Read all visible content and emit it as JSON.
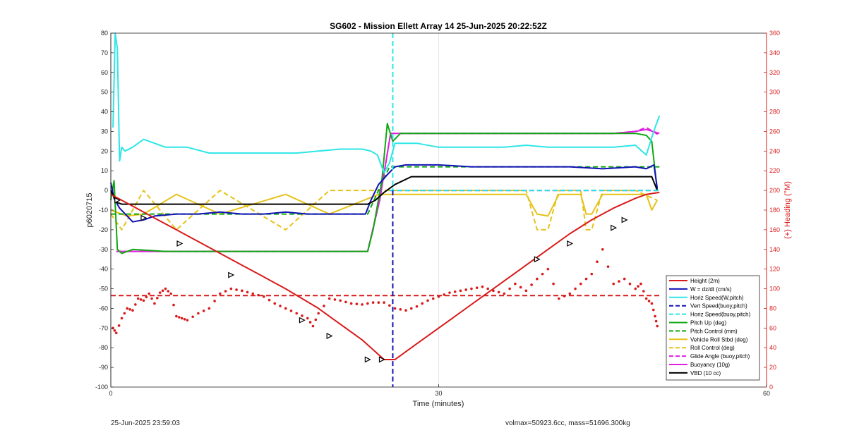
{
  "chart_data": {
    "type": "line",
    "title": "SG602 - Mission Ellett Array 14 25-Jun-2025 20:22:52Z",
    "xlabel": "Time (minutes)",
    "ylabel_left": "p6020715",
    "ylabel_right": "(+) Heading (°M)",
    "xlim": [
      0,
      60
    ],
    "ylim_left": [
      -100,
      80
    ],
    "ylim_right": [
      0,
      360
    ],
    "x_ticks": [
      0,
      30,
      60
    ],
    "y_ticks_left": [
      -100,
      -90,
      -80,
      -70,
      -60,
      -50,
      -40,
      -30,
      -20,
      -10,
      0,
      10,
      20,
      30,
      40,
      50,
      60,
      70,
      80
    ],
    "y_ticks_right": [
      0,
      20,
      40,
      60,
      80,
      100,
      120,
      140,
      160,
      180,
      200,
      220,
      240,
      260,
      280,
      300,
      320,
      340,
      360
    ],
    "grid": "vertical at x ticks",
    "legend_position": "lower-right",
    "colors": {
      "red": "#d91a1a",
      "blue": "#1010b8",
      "cyan": "#2ee6e6",
      "green": "#10a810",
      "yellow": "#e6c21a",
      "magenta": "#e020e0",
      "black": "#000000"
    },
    "series": [
      {
        "name": "Height (2m)",
        "color": "red",
        "style": "solid",
        "x": [
          0,
          2,
          4,
          6,
          8,
          10,
          12,
          14,
          16,
          17.5,
          19,
          21,
          23,
          24,
          25,
          26,
          28,
          30,
          32,
          34,
          36,
          38,
          40,
          42,
          44,
          46,
          48,
          49,
          50.2
        ],
        "y": [
          -2,
          -8,
          -14,
          -20,
          -26,
          -32,
          -38,
          -44,
          -50,
          -55,
          -60,
          -68,
          -76,
          -81,
          -86,
          -86,
          -78,
          -70,
          -62,
          -54,
          -46,
          -38,
          -30,
          -22,
          -15,
          -9,
          -4,
          -2,
          -1
        ]
      },
      {
        "name": "W = dz/dt (cm/s)",
        "color": "blue",
        "style": "solid",
        "x": [
          0,
          0.3,
          0.8,
          1.5,
          2,
          3,
          4,
          6,
          8,
          10,
          12,
          14,
          16,
          18,
          20,
          22,
          23.3,
          23.8,
          24.5,
          25.3,
          26,
          27,
          30,
          33,
          36,
          39,
          42,
          45,
          48,
          49,
          49.7,
          50
        ],
        "y": [
          4,
          -4,
          -9,
          -13,
          -16,
          -15,
          -13,
          -12,
          -12,
          -11,
          -12,
          -12,
          -11,
          -12,
          -12,
          -12,
          -12,
          -5,
          3,
          8,
          12,
          13,
          13,
          12,
          12,
          12,
          12,
          11,
          12,
          11,
          13,
          1
        ]
      },
      {
        "name": "Horiz Speed(W,pitch)",
        "color": "cyan",
        "style": "solid",
        "x": [
          0.2,
          0.4,
          0.6,
          0.8,
          1.0,
          1.3,
          2,
          3,
          5,
          7,
          9,
          11,
          13,
          15,
          17,
          19,
          21,
          23,
          23.8,
          24.4,
          25,
          25.5,
          26,
          28,
          30,
          32,
          34,
          36,
          38,
          40,
          42,
          44,
          46,
          48,
          49,
          49.5,
          49.8,
          50.2
        ],
        "y": [
          32,
          80,
          72,
          15,
          22,
          20,
          22,
          26,
          22,
          22,
          19,
          19,
          19,
          19,
          19,
          20,
          21,
          21,
          20,
          18,
          9,
          14,
          24,
          24,
          22,
          22,
          22,
          22,
          23,
          22,
          22,
          22,
          22,
          23,
          18,
          27,
          32,
          38
        ]
      },
      {
        "name": "Vert Speed(buoy,pitch)",
        "color": "blue",
        "style": "dashed",
        "x": [
          25.5,
          50.2
        ],
        "y": [
          0,
          0
        ]
      },
      {
        "name": "Horiz Speed(buoy,pitch)",
        "color": "cyan",
        "style": "dashed",
        "x": [
          25.5,
          50.2
        ],
        "y": [
          0,
          0
        ]
      },
      {
        "name": "Pitch Up (deg)",
        "color": "green",
        "style": "solid",
        "x": [
          0,
          0.3,
          0.6,
          1,
          2,
          5,
          10,
          15,
          20,
          23.5,
          24,
          24.8,
          25.3,
          25.8,
          26.5,
          28,
          35,
          45,
          48,
          49,
          49.5,
          50
        ],
        "y": [
          -5,
          5,
          -30,
          -32,
          -30,
          -31,
          -31,
          -31,
          -31,
          -31,
          -20,
          5,
          34,
          25,
          29,
          29,
          29,
          29,
          29,
          28,
          25,
          0
        ]
      },
      {
        "name": "Pitch Control (mm)",
        "color": "green",
        "style": "dashed",
        "x": [
          0,
          23.5,
          24.5,
          25.5,
          50.2
        ],
        "y": [
          -12,
          -12,
          0,
          12,
          12
        ]
      },
      {
        "name": "Vehicle Roll Stbd (deg)",
        "color": "yellow",
        "style": "solid",
        "x": [
          0,
          1.5,
          3,
          6,
          10,
          16,
          20,
          24.5,
          26,
          30,
          35,
          38,
          39,
          40,
          41,
          43,
          43.5,
          44,
          45,
          48,
          49,
          49.5,
          50
        ],
        "y": [
          -10,
          -13,
          -12,
          -2,
          -12,
          -2,
          -12,
          -2,
          -2,
          -2,
          -2,
          -2,
          -12,
          -13,
          -2,
          -2,
          -12,
          -12,
          -2,
          -2,
          -2,
          -10,
          -5
        ]
      },
      {
        "name": "Roll Control (deg)",
        "color": "yellow",
        "style": "dashed",
        "x": [
          0,
          1,
          3,
          6,
          10,
          16,
          20,
          24,
          26,
          30,
          38,
          39,
          40,
          41,
          43,
          43.5,
          44,
          45,
          48,
          50
        ],
        "y": [
          -12,
          -20,
          0,
          -20,
          0,
          -20,
          0,
          0,
          0,
          0,
          0,
          -20,
          -20,
          0,
          0,
          -20,
          -20,
          0,
          0,
          -5
        ]
      },
      {
        "name": "Glide Angle (buoy,pitch)",
        "color": "magenta",
        "style": "dashed",
        "x": [
          0.5,
          5,
          10,
          15,
          20,
          23.5,
          24.6,
          25.6,
          30,
          40,
          46,
          48,
          49,
          50.2
        ],
        "y": [
          -31,
          -31,
          -31,
          -31,
          -31,
          -31,
          -5,
          29,
          29,
          29,
          29,
          30,
          32,
          28
        ]
      },
      {
        "name": "Buoyancy (10g)",
        "color": "magenta",
        "style": "solid",
        "x": [
          0.5,
          5,
          10,
          15,
          20,
          23.5,
          24.6,
          25.6,
          30,
          40,
          46,
          48,
          49,
          50.2
        ],
        "y": [
          -31,
          -31,
          -31,
          -31,
          -31,
          -31,
          -5,
          29,
          29,
          29,
          29,
          30,
          31,
          29
        ]
      },
      {
        "name": "VBD (10 cc)",
        "color": "black",
        "style": "solid",
        "x": [
          0,
          0.5,
          1,
          23.5,
          24.2,
          25,
          26,
          27.5,
          49.5,
          50
        ],
        "y": [
          0,
          -6,
          -7,
          -7,
          -5,
          -1,
          3,
          7,
          7,
          0
        ]
      },
      {
        "name": "Heading",
        "color": "red",
        "style": "dots",
        "axis": "right",
        "x": [
          0.2,
          0.5,
          1,
          1.5,
          2,
          2.5,
          3,
          3.5,
          4,
          4.5,
          5,
          5.5,
          6,
          6.5,
          7,
          8,
          9,
          10,
          11,
          12,
          13,
          14,
          15,
          16,
          17,
          18,
          18.5,
          19,
          20,
          21,
          22,
          23,
          24,
          25,
          26,
          27,
          28,
          29,
          30,
          31,
          32,
          33,
          34,
          35,
          36,
          37,
          38,
          39,
          40,
          41,
          42,
          43,
          44,
          45,
          46,
          47,
          48,
          48.5,
          49,
          49.5,
          49.8,
          50
        ],
        "y": [
          60,
          55,
          70,
          80,
          78,
          90,
          88,
          95,
          85,
          96,
          100,
          95,
          72,
          70,
          68,
          75,
          80,
          95,
          100,
          98,
          95,
          92,
          85,
          80,
          75,
          70,
          62,
          75,
          90,
          88,
          85,
          84,
          86,
          86,
          80,
          78,
          82,
          88,
          92,
          96,
          98,
          100,
          102,
          98,
          95,
          105,
          98,
          110,
          120,
          90,
          95,
          105,
          115,
          140,
          105,
          110,
          100,
          105,
          90,
          85,
          72,
          62
        ]
      },
      {
        "name": "Heading target",
        "color": "red",
        "style": "dashed",
        "axis": "right",
        "x": [
          0,
          50.2
        ],
        "y": [
          93,
          93
        ]
      }
    ],
    "height_markers": {
      "x": [
        0.6,
        3,
        6.3,
        11,
        17.5,
        20,
        23.5,
        24.8,
        39,
        42,
        46,
        47
      ],
      "y": [
        -5,
        -14,
        -27,
        -43,
        -66,
        -74,
        -86,
        -86,
        -35,
        -27,
        -19,
        -15
      ]
    },
    "vlines": [
      {
        "x": 25.8,
        "color": "cyan",
        "style": "dashed",
        "span": "top to 0"
      },
      {
        "x": 25.8,
        "color": "blue",
        "style": "dashed",
        "span": "0 to bottom"
      }
    ]
  },
  "legend": {
    "items": [
      {
        "label": "Height (2m)",
        "color": "red",
        "style": "solid"
      },
      {
        "label": "W = dz/dt (cm/s)",
        "color": "blue",
        "style": "solid"
      },
      {
        "label": "Horiz Speed(W,pitch)",
        "color": "cyan",
        "style": "solid"
      },
      {
        "label": "Vert Speed(buoy,pitch)",
        "color": "blue",
        "style": "dashed"
      },
      {
        "label": "Horiz Speed(buoy,pitch)",
        "color": "cyan",
        "style": "dashed"
      },
      {
        "label": "Pitch Up (deg)",
        "color": "green",
        "style": "solid"
      },
      {
        "label": "Pitch Control (mm)",
        "color": "green",
        "style": "dashed"
      },
      {
        "label": "Vehicle Roll Stbd (deg)",
        "color": "yellow",
        "style": "solid"
      },
      {
        "label": "Roll Control (deg)",
        "color": "yellow",
        "style": "dashed"
      },
      {
        "label": "Glide Angle (buoy,pitch)",
        "color": "magenta",
        "style": "dashed"
      },
      {
        "label": "Buoyancy (10g)",
        "color": "magenta",
        "style": "solid"
      },
      {
        "label": "VBD (10 cc)",
        "color": "black",
        "style": "solid"
      }
    ]
  },
  "footer": {
    "timestamp": "25-Jun-2025 23:59:03",
    "info": "volmax=50923.6cc, mass=51696.300kg"
  }
}
